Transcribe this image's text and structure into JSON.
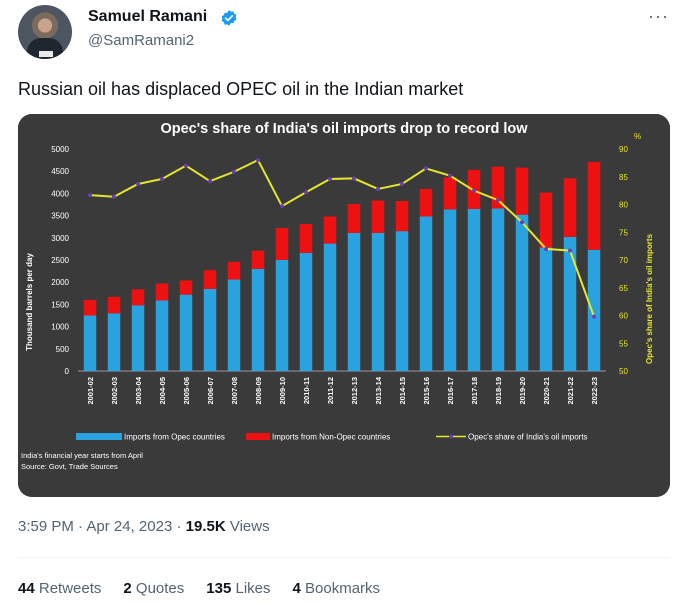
{
  "author": {
    "name": "Samuel Ramani",
    "handle": "@SamRamani2",
    "more_icon": "more-horizontal-icon",
    "verified": true
  },
  "tweet": {
    "text": "Russian oil has displaced OPEC oil in the Indian market"
  },
  "meta": {
    "time": "3:59 PM",
    "separator": "·",
    "date": "Apr 24, 2023",
    "views_count": "19.5K",
    "views_label": "Views"
  },
  "stats": [
    {
      "count": "44",
      "label": "Retweets"
    },
    {
      "count": "2",
      "label": "Quotes"
    },
    {
      "count": "135",
      "label": "Likes"
    },
    {
      "count": "4",
      "label": "Bookmarks"
    }
  ],
  "chart_data": {
    "type": "bar",
    "title": "Opec's share of India's oil imports drop to record low",
    "ylabel": "Thousand barrels per day",
    "y2label": "Opec's share of India's oil imports",
    "y2unit": "%",
    "ylim": [
      0,
      5000
    ],
    "y2lim": [
      50,
      90
    ],
    "yticks": [
      0,
      500,
      1000,
      1500,
      2000,
      2500,
      3000,
      3500,
      4000,
      4500,
      5000
    ],
    "y2ticks": [
      50,
      55,
      60,
      65,
      70,
      75,
      80,
      85,
      90
    ],
    "stacked": true,
    "categories": [
      "2001-02",
      "2002-03",
      "2003-04",
      "2004-05",
      "2005-06",
      "2006-07",
      "2007-08",
      "2008-09",
      "2009-10",
      "2010-11",
      "2011-12",
      "2012-13",
      "2013-14",
      "2014-15",
      "2015-16",
      "2016-17",
      "2017-18",
      "2018-19",
      "2019-20",
      "2020-21",
      "2021-22",
      "2022-23"
    ],
    "series": [
      {
        "name": "Imports from Opec countries",
        "type": "bar",
        "color": "#29a3e0",
        "values": [
          1250,
          1300,
          1480,
          1590,
          1720,
          1850,
          2060,
          2300,
          2500,
          2660,
          2870,
          3110,
          3110,
          3150,
          3480,
          3640,
          3650,
          3660,
          3520,
          2780,
          3020,
          2730
        ]
      },
      {
        "name": "Imports from Non-Opec countries",
        "type": "bar",
        "color": "#ee1111",
        "values": [
          350,
          370,
          360,
          380,
          320,
          420,
          400,
          410,
          720,
          650,
          610,
          650,
          730,
          680,
          620,
          720,
          880,
          940,
          1060,
          1240,
          1320,
          1980
        ]
      },
      {
        "name": "Opec's share of India's oil imports",
        "type": "line",
        "axis": "right",
        "color": "#e6e62e",
        "marker_color": "#6a3fb5",
        "values": [
          81.7,
          81.4,
          83.7,
          84.6,
          87,
          84.2,
          85.9,
          88,
          79.7,
          82.2,
          84.6,
          84.7,
          82.8,
          83.7,
          86.5,
          85.2,
          82.5,
          80.8,
          76.8,
          72,
          71.7,
          59.8
        ]
      }
    ],
    "legend_position": "bottom",
    "notes": [
      "India's financial year starts from April",
      "Source: Govt, Trade Sources"
    ]
  }
}
